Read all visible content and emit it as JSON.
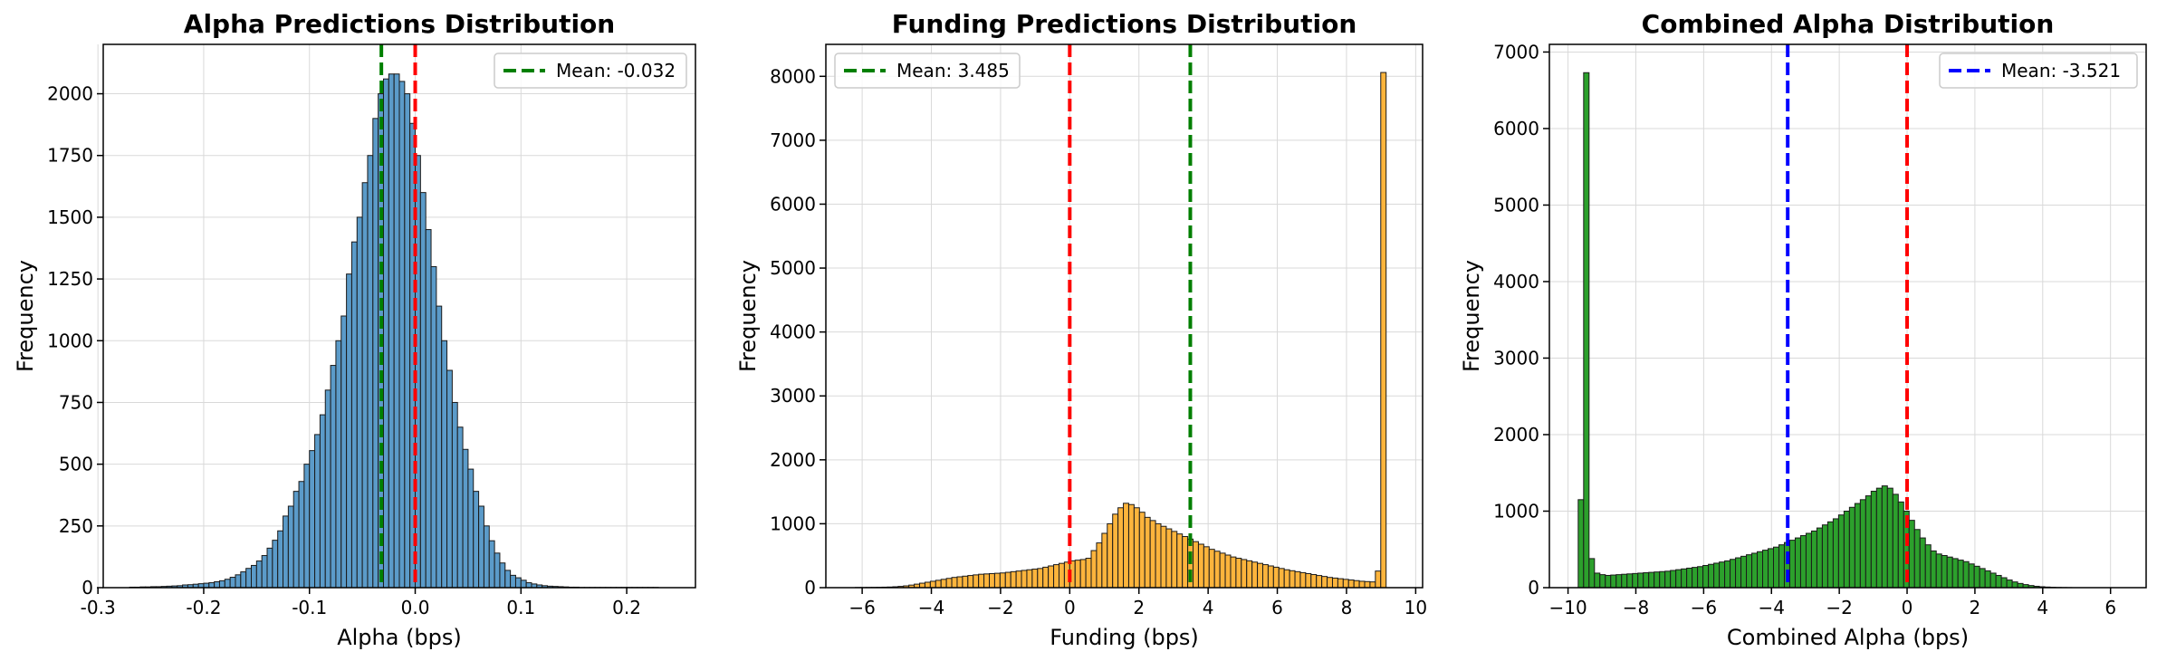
{
  "chart_data": [
    {
      "type": "bar",
      "title": "Alpha Predictions Distribution",
      "xlabel": "Alpha (bps)",
      "ylabel": "Frequency",
      "xlim": [
        -0.295,
        0.265
      ],
      "ylim": [
        0,
        2200
      ],
      "xticks": [
        "-0.3",
        "-0.2",
        "-0.1",
        "0.0",
        "0.1",
        "0.2"
      ],
      "xtick_values": [
        -0.3,
        -0.2,
        -0.1,
        0.0,
        0.1,
        0.2
      ],
      "yticks": [
        "0",
        "250",
        "500",
        "750",
        "1000",
        "1250",
        "1500",
        "1750",
        "2000"
      ],
      "ytick_values": [
        0,
        250,
        500,
        750,
        1000,
        1250,
        1500,
        1750,
        2000
      ],
      "bin_start": -0.27,
      "bin_width": 0.005,
      "values": [
        2,
        2,
        3,
        3,
        4,
        4,
        5,
        6,
        7,
        8,
        11,
        12,
        14,
        16,
        18,
        20,
        24,
        28,
        34,
        42,
        52,
        64,
        78,
        90,
        108,
        130,
        160,
        192,
        230,
        290,
        330,
        390,
        430,
        500,
        555,
        620,
        700,
        800,
        900,
        1000,
        1100,
        1270,
        1400,
        1500,
        1640,
        1750,
        1900,
        2000,
        2060,
        2080,
        2080,
        2050,
        2000,
        1880,
        1750,
        1600,
        1450,
        1300,
        1140,
        1000,
        880,
        750,
        650,
        560,
        480,
        390,
        330,
        250,
        190,
        140,
        100,
        70,
        50,
        40,
        30,
        20,
        15,
        11,
        8,
        6,
        5,
        4,
        3,
        2,
        2,
        1,
        1,
        1,
        1,
        1,
        1,
        1,
        1,
        1,
        1,
        1,
        1,
        1,
        1,
        1
      ],
      "bar_color": "#5b9bc9",
      "vlines": [
        {
          "x": -0.032,
          "color": "#007f00",
          "label": "Mean: -0.032"
        },
        {
          "x": 0.0,
          "color": "#ff0000"
        }
      ],
      "legend": [
        {
          "label": "Mean: -0.032",
          "color": "#007f00"
        }
      ],
      "legend_position": "top-right",
      "grid": true
    },
    {
      "type": "bar",
      "title": "Funding Predictions Distribution",
      "xlabel": "Funding (bps)",
      "ylabel": "Frequency",
      "xlim": [
        -7.05,
        10.2
      ],
      "ylim": [
        0,
        8500
      ],
      "xticks": [
        "−6",
        "−4",
        "−2",
        "0",
        "2",
        "4",
        "6",
        "8",
        "10"
      ],
      "xtick_values": [
        -6,
        -4,
        -2,
        0,
        2,
        4,
        6,
        8,
        10
      ],
      "yticks": [
        "0",
        "1000",
        "2000",
        "3000",
        "4000",
        "5000",
        "6000",
        "7000",
        "8000"
      ],
      "ytick_values": [
        0,
        1000,
        2000,
        3000,
        4000,
        5000,
        6000,
        7000,
        8000
      ],
      "bin_start": -6.2,
      "bin_width": 0.155,
      "values": [
        3,
        3,
        4,
        5,
        6,
        8,
        10,
        14,
        20,
        28,
        40,
        55,
        70,
        85,
        100,
        115,
        130,
        145,
        160,
        170,
        180,
        190,
        200,
        210,
        215,
        220,
        225,
        230,
        240,
        250,
        260,
        270,
        280,
        290,
        300,
        320,
        340,
        360,
        380,
        400,
        420,
        430,
        440,
        460,
        580,
        700,
        850,
        1000,
        1150,
        1250,
        1320,
        1300,
        1250,
        1180,
        1100,
        1050,
        1000,
        960,
        920,
        880,
        840,
        800,
        760,
        720,
        680,
        640,
        600,
        570,
        540,
        510,
        480,
        460,
        440,
        420,
        400,
        380,
        360,
        340,
        320,
        300,
        280,
        265,
        250,
        235,
        220,
        205,
        190,
        175,
        160,
        150,
        140,
        130,
        120,
        110,
        100,
        95,
        90,
        260,
        8060
      ],
      "bar_color": "#fcb43c",
      "vlines": [
        {
          "x": 0.0,
          "color": "#ff0000"
        },
        {
          "x": 3.485,
          "color": "#007f00",
          "label": "Mean: 3.485"
        }
      ],
      "legend": [
        {
          "label": "Mean: 3.485",
          "color": "#007f00"
        }
      ],
      "legend_position": "top-left",
      "grid": true
    },
    {
      "type": "bar",
      "title": "Combined Alpha Distribution",
      "xlabel": "Combined Alpha (bps)",
      "ylabel": "Frequency",
      "xlim": [
        -10.55,
        7.05
      ],
      "ylim": [
        0,
        7100
      ],
      "xticks": [
        "−10",
        "−8",
        "−6",
        "−4",
        "−2",
        "0",
        "2",
        "4",
        "6"
      ],
      "xtick_values": [
        -10,
        -8,
        -6,
        -4,
        -2,
        0,
        2,
        4,
        6
      ],
      "yticks": [
        "0",
        "1000",
        "2000",
        "3000",
        "4000",
        "5000",
        "6000",
        "7000"
      ],
      "ytick_values": [
        0,
        1000,
        2000,
        3000,
        4000,
        5000,
        6000,
        7000
      ],
      "bin_start": -9.7,
      "bin_width": 0.16,
      "values": [
        1150,
        6730,
        380,
        190,
        170,
        160,
        165,
        170,
        175,
        180,
        185,
        190,
        195,
        200,
        205,
        210,
        215,
        225,
        235,
        245,
        255,
        265,
        275,
        290,
        305,
        320,
        335,
        350,
        370,
        390,
        410,
        430,
        450,
        470,
        490,
        510,
        530,
        560,
        590,
        620,
        650,
        680,
        710,
        740,
        780,
        820,
        860,
        900,
        950,
        1000,
        1050,
        1100,
        1150,
        1200,
        1260,
        1300,
        1330,
        1300,
        1220,
        1120,
        1000,
        880,
        760,
        650,
        560,
        480,
        440,
        420,
        400,
        380,
        360,
        340,
        310,
        280,
        250,
        220,
        190,
        160,
        130,
        100,
        75,
        55,
        40,
        28,
        18,
        12,
        8,
        5,
        3,
        2,
        1
      ],
      "bar_color": "#2ca02c",
      "vlines": [
        {
          "x": -3.521,
          "color": "#0000ff",
          "label": "Mean: -3.521"
        },
        {
          "x": 0.0,
          "color": "#ff0000"
        }
      ],
      "legend": [
        {
          "label": "Mean: -3.521",
          "color": "#0000ff"
        }
      ],
      "legend_position": "top-right",
      "grid": true
    }
  ]
}
